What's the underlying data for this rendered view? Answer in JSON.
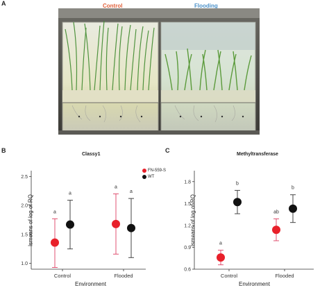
{
  "panel_a": {
    "letter": "A",
    "control_label": "Control",
    "flooding_label": "Flooding",
    "control_color": "#e0603a",
    "flooding_color": "#4a90c8"
  },
  "chart_data": [
    {
      "panel": "B",
      "type": "scatter",
      "title": "Classy1",
      "xlabel": "Environment",
      "ylabel": "lsmeans of log of RQ",
      "categories": [
        "Control",
        "Flooded"
      ],
      "ylim": [
        0.9,
        2.6
      ],
      "yticks": [
        "1.0",
        "1.5",
        "2.0",
        "2.5"
      ],
      "ytick_values": [
        1.0,
        1.5,
        2.0,
        2.5
      ],
      "legend": {
        "position": "top-right",
        "entries": [
          "FN-559-S",
          "WT"
        ]
      },
      "series": [
        {
          "name": "FN-559-S",
          "color": "#e8202a",
          "errcolor": "#e05070",
          "values": [
            1.36,
            1.68
          ],
          "lower": [
            0.93,
            1.16
          ],
          "upper": [
            1.77,
            2.2
          ]
        },
        {
          "name": "WT",
          "color": "#111111",
          "errcolor": "#444444",
          "values": [
            1.67,
            1.61
          ],
          "lower": [
            1.25,
            1.1
          ],
          "upper": [
            2.09,
            2.12
          ]
        }
      ],
      "letters": [
        [
          "a",
          "a"
        ],
        [
          "a",
          "a"
        ]
      ]
    },
    {
      "panel": "C",
      "type": "scatter",
      "title": "Methyltransferase",
      "xlabel": "Environment",
      "ylabel": "lsmeans of log of RQ",
      "categories": [
        "Control",
        "Flooded"
      ],
      "ylim": [
        0.6,
        1.95
      ],
      "yticks": [
        "0.6",
        "0.9",
        "1.2",
        "1.5",
        "1.8"
      ],
      "ytick_values": [
        0.6,
        0.9,
        1.2,
        1.5,
        1.8
      ],
      "series": [
        {
          "name": "FN-559-S",
          "color": "#e8202a",
          "errcolor": "#e05070",
          "values": [
            0.76,
            1.14
          ],
          "lower": [
            0.66,
            0.99
          ],
          "upper": [
            0.86,
            1.29
          ]
        },
        {
          "name": "WT",
          "color": "#111111",
          "errcolor": "#444444",
          "values": [
            1.52,
            1.43
          ],
          "lower": [
            1.36,
            1.24
          ],
          "upper": [
            1.68,
            1.62
          ]
        }
      ],
      "letters": [
        [
          "a",
          "b"
        ],
        [
          "ab",
          "b"
        ]
      ]
    }
  ]
}
